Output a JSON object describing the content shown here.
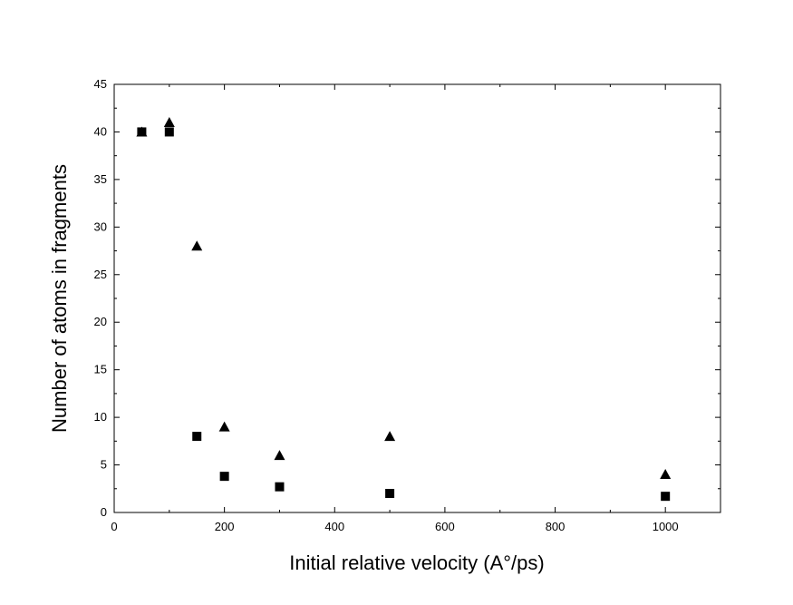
{
  "chart_data": {
    "type": "scatter",
    "title": "",
    "xlabel": "Initial relative velocity (A°/ps)",
    "ylabel": "Number of atoms in fragments",
    "xlim": [
      0,
      1100
    ],
    "ylim": [
      0,
      45
    ],
    "xticks": [
      "0",
      "200",
      "400",
      "600",
      "800",
      "1000"
    ],
    "yticks": [
      "0",
      "5",
      "10",
      "15",
      "20",
      "25",
      "30",
      "35",
      "40",
      "45"
    ],
    "grid": false,
    "legend": "none",
    "series": [
      {
        "marker": "triangle",
        "color": "#000000",
        "x": [
          50,
          100,
          150,
          200,
          300,
          500,
          1000
        ],
        "y": [
          40,
          41,
          28,
          9,
          6,
          8,
          4
        ]
      },
      {
        "marker": "square",
        "color": "#000000",
        "x": [
          50,
          100,
          150,
          200,
          300,
          500,
          1000
        ],
        "y": [
          40,
          40,
          8,
          3.8,
          2.7,
          2,
          1.7
        ]
      }
    ]
  }
}
